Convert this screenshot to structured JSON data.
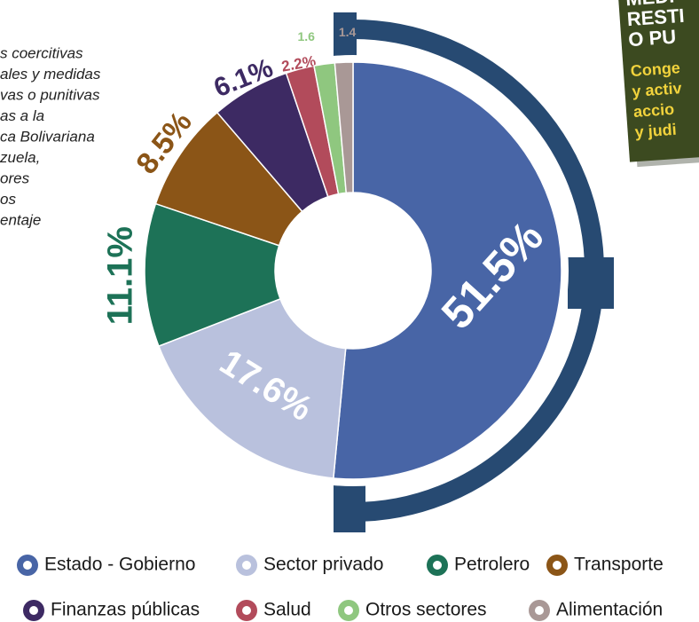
{
  "intro_lines": [
    "s coercitivas",
    "ales y medidas",
    "vas o punitivas",
    "as a la",
    "ca Bolivariana",
    "zuela,",
    "ores",
    "os",
    "entaje"
  ],
  "side_box": {
    "heading": [
      "MEDI",
      "RESTI",
      "O PU"
    ],
    "body": [
      "Conge",
      "y activ",
      "accio",
      "y judi"
    ]
  },
  "chart_data": {
    "type": "pie",
    "donut": true,
    "categories": [
      "Estado - Gobierno",
      "Sector privado",
      "Petrolero",
      "Transporte",
      "Finanzas públicas",
      "Salud",
      "Otros sectores",
      "Alimentación"
    ],
    "values": [
      51.5,
      17.6,
      11.1,
      8.5,
      6.1,
      2.2,
      1.6,
      1.4
    ],
    "value_labels": [
      "51.5%",
      "17.6%",
      "11.1%",
      "8.5%",
      "6.1%",
      "2.2%",
      "1.6",
      "1.4"
    ],
    "colors": [
      "#4865a6",
      "#b9c1dd",
      "#1d7257",
      "#8b5517",
      "#3d2a63",
      "#b24b5b",
      "#8fc77f",
      "#a99896"
    ]
  }
}
